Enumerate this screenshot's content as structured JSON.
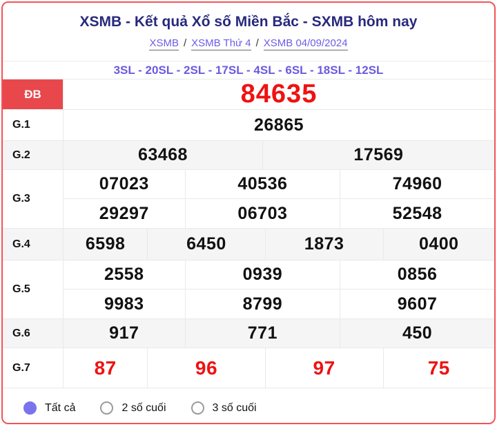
{
  "header": {
    "title": "XSMB - Kết quả Xổ số Miền Bắc - SXMB hôm nay",
    "breadcrumb": [
      "XSMB",
      "XSMB Thứ 4",
      "XSMB 04/09/2024"
    ],
    "separator": "/",
    "stats": "3SL - 20SL - 2SL - 17SL - 4SL - 6SL - 18SL - 12SL"
  },
  "results": {
    "rows": [
      {
        "label": "ĐB",
        "style": "special",
        "lines": [
          [
            "84635"
          ]
        ]
      },
      {
        "label": "G.1",
        "style": "normal",
        "lines": [
          [
            "26865"
          ]
        ]
      },
      {
        "label": "G.2",
        "style": "normal",
        "lines": [
          [
            "63468",
            "17569"
          ]
        ]
      },
      {
        "label": "G.3",
        "style": "normal",
        "lines": [
          [
            "07023",
            "40536",
            "74960"
          ],
          [
            "29297",
            "06703",
            "52548"
          ]
        ]
      },
      {
        "label": "G.4",
        "style": "normal",
        "lines": [
          [
            "6598",
            "6450",
            "1873",
            "0400"
          ]
        ]
      },
      {
        "label": "G.5",
        "style": "normal",
        "lines": [
          [
            "2558",
            "0939",
            "0856"
          ],
          [
            "9983",
            "8799",
            "9607"
          ]
        ]
      },
      {
        "label": "G.6",
        "style": "normal",
        "lines": [
          [
            "917",
            "771",
            "450"
          ]
        ]
      },
      {
        "label": "G.7",
        "style": "red",
        "lines": [
          [
            "87",
            "96",
            "97",
            "75"
          ]
        ]
      }
    ]
  },
  "filters": {
    "options": [
      {
        "label": "Tất cả",
        "selected": true
      },
      {
        "label": "2 số cuối",
        "selected": false
      },
      {
        "label": "3 số cuối",
        "selected": false
      }
    ]
  },
  "colors": {
    "border-red": "#f25358",
    "special-bg": "#e8484b",
    "number-red": "#ee1212",
    "title-navy": "#28297d",
    "link-purple": "#6c5ce7",
    "stats-purple": "#6a5ae0",
    "radio-purple": "#7b72ee",
    "row-alt": "#f5f5f6",
    "cell-border": "#e9e9eb",
    "text-dark": "#111111"
  }
}
